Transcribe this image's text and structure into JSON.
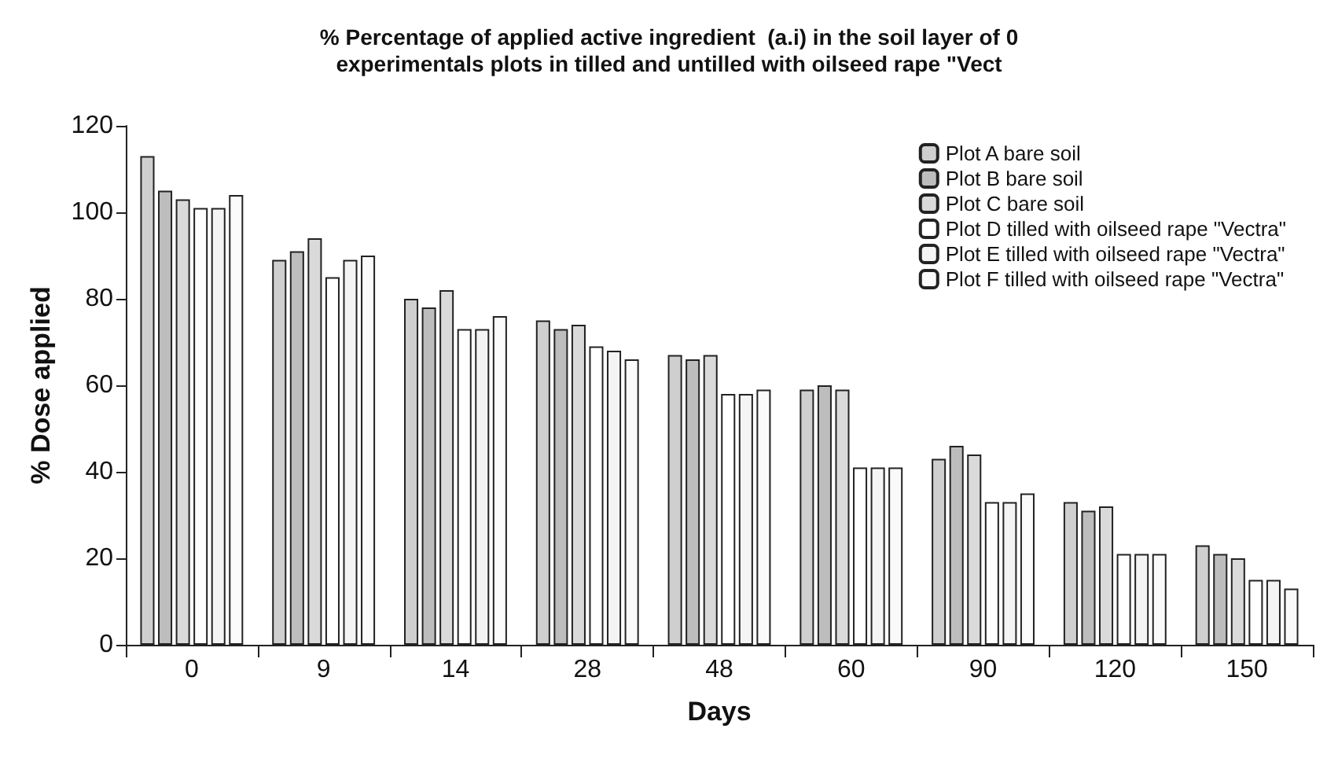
{
  "chart_data": {
    "type": "bar",
    "title": "% Percentage of applied active ingredient  (a.i) in the soil layer of 0\nexperimentals plots in tilled and untilled with oilseed rape \"Vect",
    "xlabel": "Days",
    "ylabel": "% Dose applied",
    "categories": [
      "0",
      "9",
      "14",
      "28",
      "48",
      "60",
      "90",
      "120",
      "150"
    ],
    "series": [
      {
        "name": "Plot A bare soil",
        "color": "#cfcfcf",
        "values": [
          113,
          89,
          80,
          75,
          67,
          59,
          43,
          33,
          23
        ]
      },
      {
        "name": "Plot B bare soil",
        "color": "#bdbdbd",
        "values": [
          105,
          91,
          78,
          73,
          66,
          60,
          46,
          31,
          21
        ]
      },
      {
        "name": "Plot C bare soil",
        "color": "#dadada",
        "values": [
          103,
          94,
          82,
          74,
          67,
          59,
          44,
          32,
          20
        ]
      },
      {
        "name": "Plot D tilled with oilseed rape \"Vectra\"",
        "color": "#ffffff",
        "values": [
          101,
          85,
          73,
          69,
          58,
          41,
          33,
          21,
          15
        ]
      },
      {
        "name": "Plot E tilled with oilseed rape \"Vectra\"",
        "color": "#f4f4f4",
        "values": [
          101,
          89,
          73,
          68,
          58,
          41,
          33,
          21,
          15
        ]
      },
      {
        "name": "Plot F tilled with oilseed rape \"Vectra\"",
        "color": "#fafafa",
        "values": [
          104,
          90,
          76,
          66,
          59,
          41,
          35,
          21,
          13
        ]
      }
    ],
    "ylim": [
      0,
      120
    ],
    "yticks": [
      0,
      20,
      40,
      60,
      80,
      100,
      120
    ],
    "legend": "top right",
    "grid": false
  }
}
